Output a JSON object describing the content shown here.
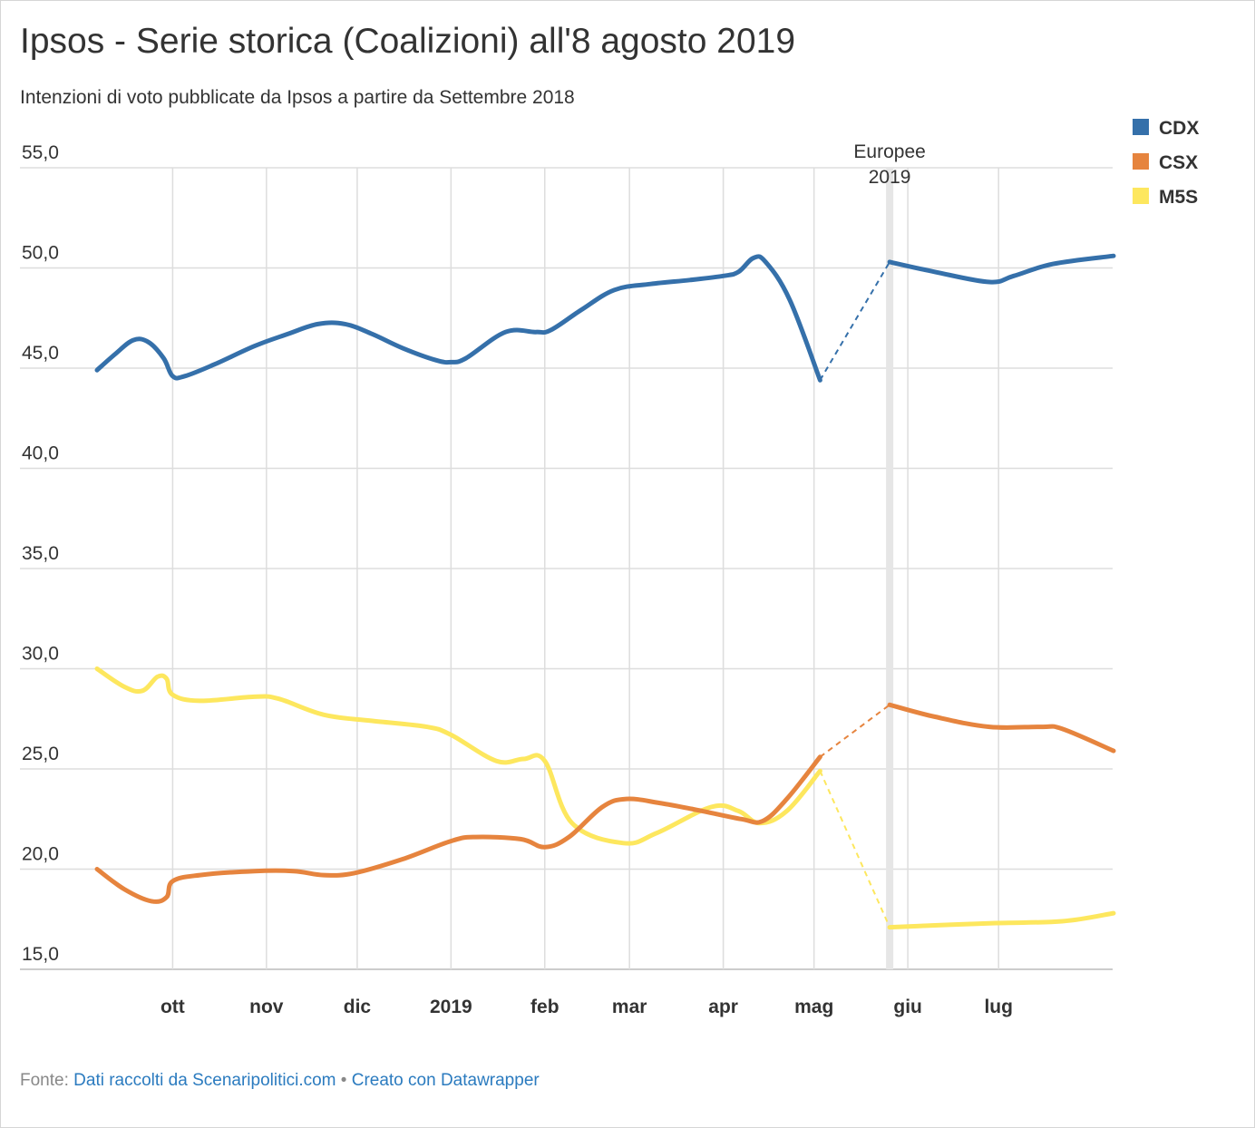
{
  "chart": {
    "title": "Ipsos - Serie storica (Coalizioni) all'8 agosto 2019",
    "subtitle": "Intenzioni di voto pubblicate da Ipsos a partire da Settembre 2018"
  },
  "footer": {
    "prefix": "Fonte: ",
    "source_link": "Dati raccolti da Scenaripolitici.com",
    "separator": " • ",
    "credit_link": "Creato con Datawrapper"
  },
  "colors": {
    "cdx": "#3570aa",
    "csx": "#e6843e",
    "m5s": "#fde75e",
    "grid": "#dddddd",
    "event_band": "#e6e6e6",
    "text": "#333333"
  },
  "chart_data": {
    "type": "line",
    "title": "Ipsos - Serie storica (Coalizioni) all'8 agosto 2019",
    "subtitle": "Intenzioni di voto pubblicate da Ipsos a partire da Settembre 2018",
    "xlabel": "",
    "ylabel": "",
    "ylim": [
      15,
      55
    ],
    "xlim": [
      "2018-09-06",
      "2019-08-08"
    ],
    "y_ticks": [
      15,
      20,
      25,
      30,
      35,
      40,
      45,
      50,
      55
    ],
    "y_tick_labels": [
      "15,0",
      "20,0",
      "25,0",
      "30,0",
      "35,0",
      "40,0",
      "45,0",
      "50,0",
      "55,0"
    ],
    "x_ticks": [
      {
        "date": "2018-10-01",
        "label": "ott"
      },
      {
        "date": "2018-11-01",
        "label": "nov"
      },
      {
        "date": "2018-12-01",
        "label": "dic"
      },
      {
        "date": "2019-01-01",
        "label": "2019"
      },
      {
        "date": "2019-02-01",
        "label": "feb"
      },
      {
        "date": "2019-03-01",
        "label": "mar"
      },
      {
        "date": "2019-04-01",
        "label": "apr"
      },
      {
        "date": "2019-05-01",
        "label": "mag"
      },
      {
        "date": "2019-06-01",
        "label": "giu"
      },
      {
        "date": "2019-07-01",
        "label": "lug"
      }
    ],
    "grid": true,
    "legend_position": "top-right",
    "annotations": [
      {
        "date": "2019-05-26",
        "lines": [
          "Europee",
          "2019"
        ]
      }
    ],
    "series": [
      {
        "name": "CDX",
        "color": "#3570aa",
        "segments": [
          [
            {
              "x": "2018-09-06",
              "y": 44.9
            },
            {
              "x": "2018-09-12",
              "y": 45.7
            },
            {
              "x": "2018-09-18",
              "y": 46.4
            },
            {
              "x": "2018-09-23",
              "y": 46.3
            },
            {
              "x": "2018-09-28",
              "y": 45.5
            },
            {
              "x": "2018-10-01",
              "y": 44.6
            },
            {
              "x": "2018-10-05",
              "y": 44.6
            },
            {
              "x": "2018-10-15",
              "y": 45.2
            },
            {
              "x": "2018-10-28",
              "y": 46.1
            },
            {
              "x": "2018-11-08",
              "y": 46.7
            },
            {
              "x": "2018-11-18",
              "y": 47.2
            },
            {
              "x": "2018-11-27",
              "y": 47.2
            },
            {
              "x": "2018-12-06",
              "y": 46.7
            },
            {
              "x": "2018-12-16",
              "y": 46.0
            },
            {
              "x": "2018-12-27",
              "y": 45.4
            },
            {
              "x": "2019-01-01",
              "y": 45.3
            },
            {
              "x": "2019-01-06",
              "y": 45.5
            },
            {
              "x": "2019-01-19",
              "y": 46.8
            },
            {
              "x": "2019-01-29",
              "y": 46.8
            },
            {
              "x": "2019-02-03",
              "y": 46.9
            },
            {
              "x": "2019-02-13",
              "y": 47.9
            },
            {
              "x": "2019-02-24",
              "y": 48.9
            },
            {
              "x": "2019-03-08",
              "y": 49.2
            },
            {
              "x": "2019-03-21",
              "y": 49.4
            },
            {
              "x": "2019-04-01",
              "y": 49.6
            },
            {
              "x": "2019-04-06",
              "y": 49.8
            },
            {
              "x": "2019-04-11",
              "y": 50.5
            },
            {
              "x": "2019-04-15",
              "y": 50.3
            },
            {
              "x": "2019-04-23",
              "y": 48.4
            },
            {
              "x": "2019-05-03",
              "y": 44.4
            }
          ],
          [
            {
              "x": "2019-05-26",
              "y": 50.3
            },
            {
              "x": "2019-06-10",
              "y": 49.8
            },
            {
              "x": "2019-06-28",
              "y": 49.3
            },
            {
              "x": "2019-07-06",
              "y": 49.6
            },
            {
              "x": "2019-07-19",
              "y": 50.2
            },
            {
              "x": "2019-08-08",
              "y": 50.6
            }
          ]
        ]
      },
      {
        "name": "CSX",
        "color": "#e6843e",
        "segments": [
          [
            {
              "x": "2018-09-06",
              "y": 20.0
            },
            {
              "x": "2018-09-15",
              "y": 19.0
            },
            {
              "x": "2018-09-24",
              "y": 18.4
            },
            {
              "x": "2018-09-29",
              "y": 18.6
            },
            {
              "x": "2018-10-01",
              "y": 19.4
            },
            {
              "x": "2018-10-10",
              "y": 19.7
            },
            {
              "x": "2018-10-28",
              "y": 19.9
            },
            {
              "x": "2018-11-10",
              "y": 19.9
            },
            {
              "x": "2018-11-20",
              "y": 19.7
            },
            {
              "x": "2018-11-30",
              "y": 19.8
            },
            {
              "x": "2018-12-16",
              "y": 20.5
            },
            {
              "x": "2019-01-01",
              "y": 21.4
            },
            {
              "x": "2019-01-09",
              "y": 21.6
            },
            {
              "x": "2019-01-24",
              "y": 21.5
            },
            {
              "x": "2019-02-01",
              "y": 21.1
            },
            {
              "x": "2019-02-09",
              "y": 21.6
            },
            {
              "x": "2019-02-20",
              "y": 23.1
            },
            {
              "x": "2019-02-28",
              "y": 23.5
            },
            {
              "x": "2019-03-11",
              "y": 23.3
            },
            {
              "x": "2019-03-25",
              "y": 22.9
            },
            {
              "x": "2019-04-07",
              "y": 22.5
            },
            {
              "x": "2019-04-14",
              "y": 22.4
            },
            {
              "x": "2019-04-22",
              "y": 23.5
            },
            {
              "x": "2019-05-03",
              "y": 25.6
            }
          ],
          [
            {
              "x": "2019-05-26",
              "y": 28.2
            },
            {
              "x": "2019-06-10",
              "y": 27.6
            },
            {
              "x": "2019-06-28",
              "y": 27.1
            },
            {
              "x": "2019-07-15",
              "y": 27.1
            },
            {
              "x": "2019-07-22",
              "y": 27.0
            },
            {
              "x": "2019-08-08",
              "y": 25.9
            }
          ]
        ]
      },
      {
        "name": "M5S",
        "color": "#fde75e",
        "segments": [
          [
            {
              "x": "2018-09-06",
              "y": 30.0
            },
            {
              "x": "2018-09-15",
              "y": 29.1
            },
            {
              "x": "2018-09-21",
              "y": 28.9
            },
            {
              "x": "2018-09-26",
              "y": 29.6
            },
            {
              "x": "2018-09-29",
              "y": 29.5
            },
            {
              "x": "2018-10-01",
              "y": 28.7
            },
            {
              "x": "2018-10-10",
              "y": 28.4
            },
            {
              "x": "2018-10-28",
              "y": 28.6
            },
            {
              "x": "2018-11-05",
              "y": 28.5
            },
            {
              "x": "2018-11-20",
              "y": 27.7
            },
            {
              "x": "2018-12-06",
              "y": 27.4
            },
            {
              "x": "2018-12-24",
              "y": 27.1
            },
            {
              "x": "2019-01-01",
              "y": 26.7
            },
            {
              "x": "2019-01-16",
              "y": 25.4
            },
            {
              "x": "2019-01-25",
              "y": 25.5
            },
            {
              "x": "2019-02-01",
              "y": 25.4
            },
            {
              "x": "2019-02-10",
              "y": 22.3
            },
            {
              "x": "2019-02-27",
              "y": 21.3
            },
            {
              "x": "2019-03-10",
              "y": 21.8
            },
            {
              "x": "2019-03-28",
              "y": 23.1
            },
            {
              "x": "2019-04-06",
              "y": 22.9
            },
            {
              "x": "2019-04-13",
              "y": 22.3
            },
            {
              "x": "2019-04-22",
              "y": 22.9
            },
            {
              "x": "2019-05-03",
              "y": 24.9
            }
          ],
          [
            {
              "x": "2019-05-26",
              "y": 17.1
            },
            {
              "x": "2019-06-28",
              "y": 17.3
            },
            {
              "x": "2019-07-22",
              "y": 17.4
            },
            {
              "x": "2019-08-08",
              "y": 17.8
            }
          ]
        ]
      }
    ]
  }
}
